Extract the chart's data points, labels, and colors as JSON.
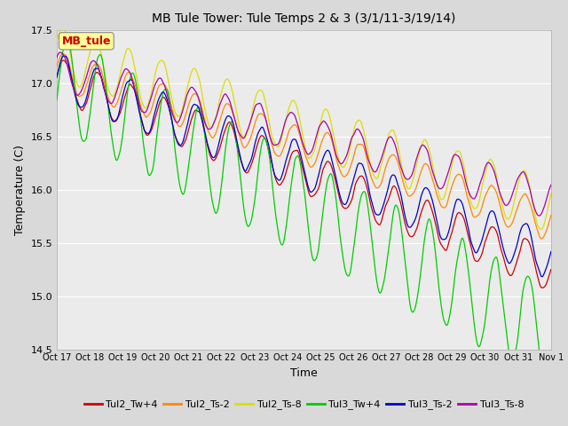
{
  "title": "MB Tule Tower: Tule Temps 2 & 3 (3/1/11-3/19/14)",
  "xlabel": "Time",
  "ylabel": "Temperature (C)",
  "ylim": [
    14.5,
    17.5
  ],
  "xlim": [
    0,
    15
  ],
  "xtick_labels": [
    "Oct 17",
    "Oct 18",
    "Oct 19",
    "Oct 20",
    "Oct 21",
    "Oct 22",
    "Oct 23",
    "Oct 24",
    "Oct 25",
    "Oct 26",
    "Oct 27",
    "Oct 28",
    "Oct 29",
    "Oct 30",
    "Oct 31",
    "Nov 1"
  ],
  "ytick_labels": [
    "14.5",
    "15.0",
    "15.5",
    "16.0",
    "16.5",
    "17.0",
    "17.5"
  ],
  "ytick_values": [
    14.5,
    15.0,
    15.5,
    16.0,
    16.5,
    17.0,
    17.5
  ],
  "legend_entries": [
    "Tul2_Tw+4",
    "Tul2_Ts-2",
    "Tul2_Ts-8",
    "Tul3_Tw+4",
    "Tul3_Ts-2",
    "Tul3_Ts-8"
  ],
  "line_colors": [
    "#cc0000",
    "#ff8800",
    "#dddd00",
    "#00cc00",
    "#0000cc",
    "#aa00aa"
  ],
  "annotation_text": "MB_tule",
  "annotation_color": "#cc0000",
  "annotation_box_facecolor": "#ffff99",
  "annotation_box_edgecolor": "#888888",
  "background_color": "#d9d9d9",
  "plot_bg_color": "#ebebeb",
  "grid_color": "#ffffff",
  "title_fontsize": 10,
  "tick_fontsize": 7,
  "label_fontsize": 9,
  "legend_fontsize": 8,
  "linewidth": 0.9
}
